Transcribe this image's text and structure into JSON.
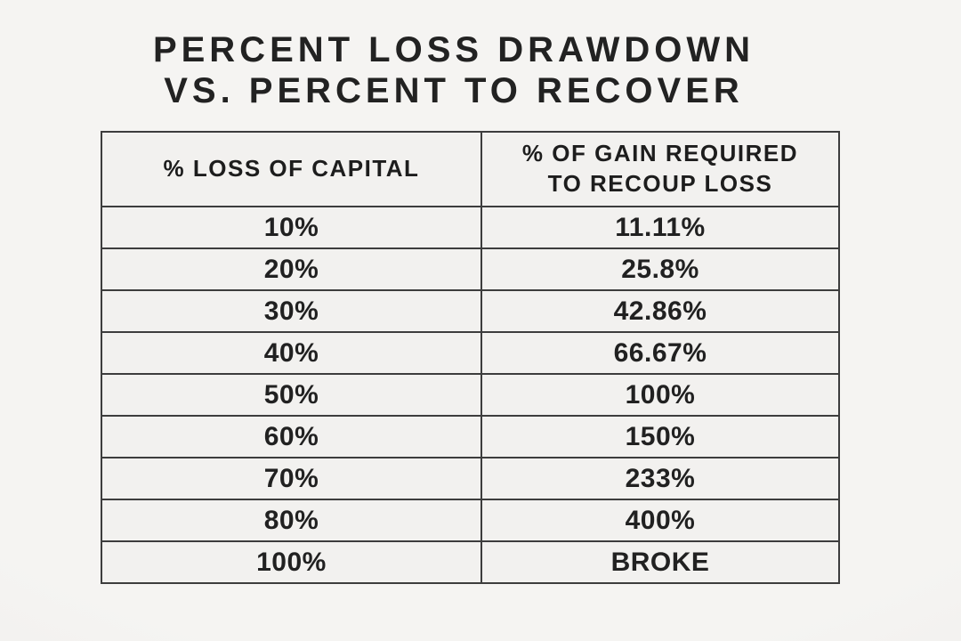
{
  "title": {
    "line1": "PERCENT LOSS DRAWDOWN",
    "line2": "VS. PERCENT TO RECOVER"
  },
  "table": {
    "headers": {
      "loss": "% LOSS OF CAPITAL",
      "gain": "% OF GAIN REQUIRED TO RECOUP LOSS"
    },
    "rows": [
      {
        "loss": "10%",
        "gain": "11.11%"
      },
      {
        "loss": "20%",
        "gain": "25.8%"
      },
      {
        "loss": "30%",
        "gain": "42.86%"
      },
      {
        "loss": "40%",
        "gain": "66.67%"
      },
      {
        "loss": "50%",
        "gain": "100%"
      },
      {
        "loss": "60%",
        "gain": "150%"
      },
      {
        "loss": "70%",
        "gain": "233%"
      },
      {
        "loss": "80%",
        "gain": "400%"
      },
      {
        "loss": "100%",
        "gain": "BROKE"
      }
    ]
  },
  "colors": {
    "background": "#f2f1ef",
    "border": "#3d3d3d",
    "text": "#1f1f1f"
  },
  "chart_data": {
    "type": "table",
    "title": "PERCENT LOSS DRAWDOWN VS. PERCENT TO RECOVER",
    "columns": [
      "% LOSS OF CAPITAL",
      "% OF GAIN REQUIRED TO RECOUP LOSS"
    ],
    "rows": [
      [
        "10%",
        "11.11%"
      ],
      [
        "20%",
        "25.8%"
      ],
      [
        "30%",
        "42.86%"
      ],
      [
        "40%",
        "66.67%"
      ],
      [
        "50%",
        "100%"
      ],
      [
        "60%",
        "150%"
      ],
      [
        "70%",
        "233%"
      ],
      [
        "80%",
        "400%"
      ],
      [
        "100%",
        "BROKE"
      ]
    ]
  }
}
